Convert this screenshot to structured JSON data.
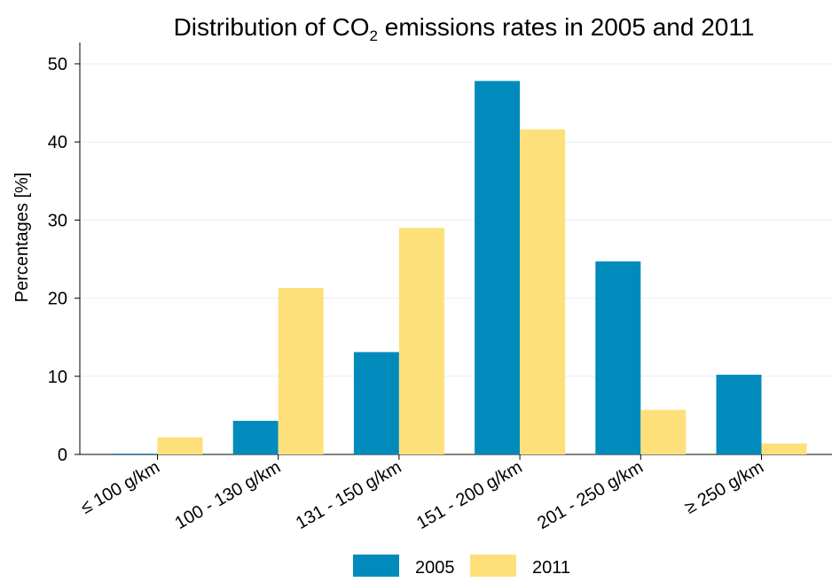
{
  "chart_data": {
    "type": "bar",
    "title": "Distribution of CO",
    "title_subscript": "2",
    "title_rest": " emissions rates in 2005 and 2011",
    "ylabel": "Percentages [%]",
    "xlabel": "",
    "ylim": [
      0,
      50
    ],
    "yticks": [
      0,
      10,
      20,
      30,
      40,
      50
    ],
    "grid": true,
    "legend_position": "bottom",
    "categories": [
      "≤ 100 g/km",
      "100 - 130 g/km",
      "131 - 150 g/km",
      "151 - 200 g/km",
      "201 - 250 g/km",
      "≥ 250 g/km"
    ],
    "series": [
      {
        "name": "2005",
        "color": "#008bbc",
        "values": [
          0.1,
          4.3,
          13.1,
          47.8,
          24.7,
          10.2
        ]
      },
      {
        "name": "2011",
        "color": "#fde07a",
        "values": [
          2.2,
          21.3,
          29.0,
          41.6,
          5.7,
          1.4
        ]
      }
    ]
  }
}
